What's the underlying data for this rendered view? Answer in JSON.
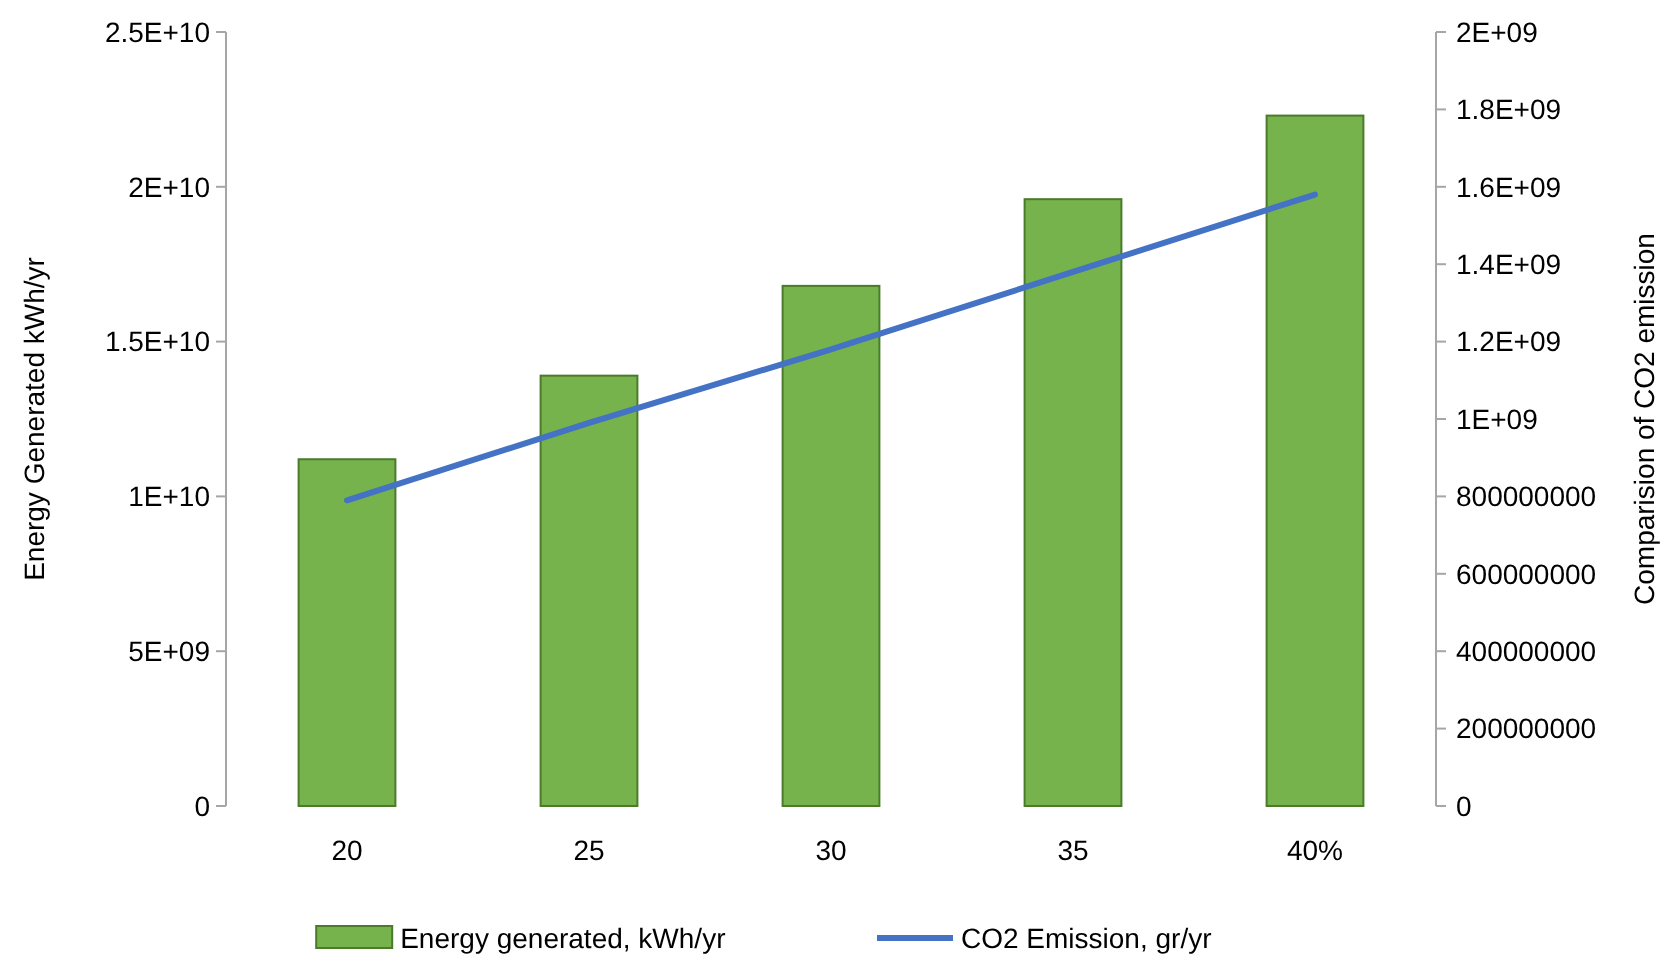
{
  "chart_data": {
    "type": "bar",
    "categories": [
      "20",
      "25",
      "30",
      "35",
      "40%"
    ],
    "ylabel": "Energy Generated kWh/yr",
    "y2label": "Comparision of CO2 emission",
    "series": [
      {
        "name": "Energy generated, kWh/yr",
        "color": "#77b34c",
        "values": [
          11200000000,
          13900000000,
          16800000000,
          19600000000,
          22300000000
        ]
      },
      {
        "name": "CO2 Emission, gr/yr",
        "type": "line",
        "axis": "y2",
        "color": "#4472c4",
        "values": [
          790000000,
          990000000,
          1180000000,
          1380000000,
          1580000000
        ]
      }
    ],
    "ylim": [
      0,
      25000000000
    ],
    "yticks": [
      0,
      {
        "value": 5000000000,
        "label": "5E+09"
      },
      {
        "value": 10000000000,
        "label": "1E+10"
      },
      {
        "value": 15000000000,
        "label": "1.5E+10"
      },
      {
        "value": 20000000000,
        "label": "2E+10"
      },
      {
        "value": 25000000000,
        "label": "2.5E+10"
      }
    ],
    "y2lim": [
      0,
      2000000000
    ],
    "y2ticks": [
      0,
      200000000,
      400000000,
      600000000,
      800000000,
      {
        "value": 1000000000,
        "label": "1E+09"
      },
      {
        "value": 1200000000,
        "label": "1.2E+09"
      },
      {
        "value": 1400000000,
        "label": "1.4E+09"
      },
      {
        "value": 1600000000,
        "label": "1.6E+09"
      },
      {
        "value": 1800000000,
        "label": "1.8E+09"
      },
      {
        "value": 2000000000,
        "label": "2E+09"
      }
    ],
    "grid": false,
    "legend": "bottom",
    "marker": "none",
    "line_style": "solid"
  }
}
